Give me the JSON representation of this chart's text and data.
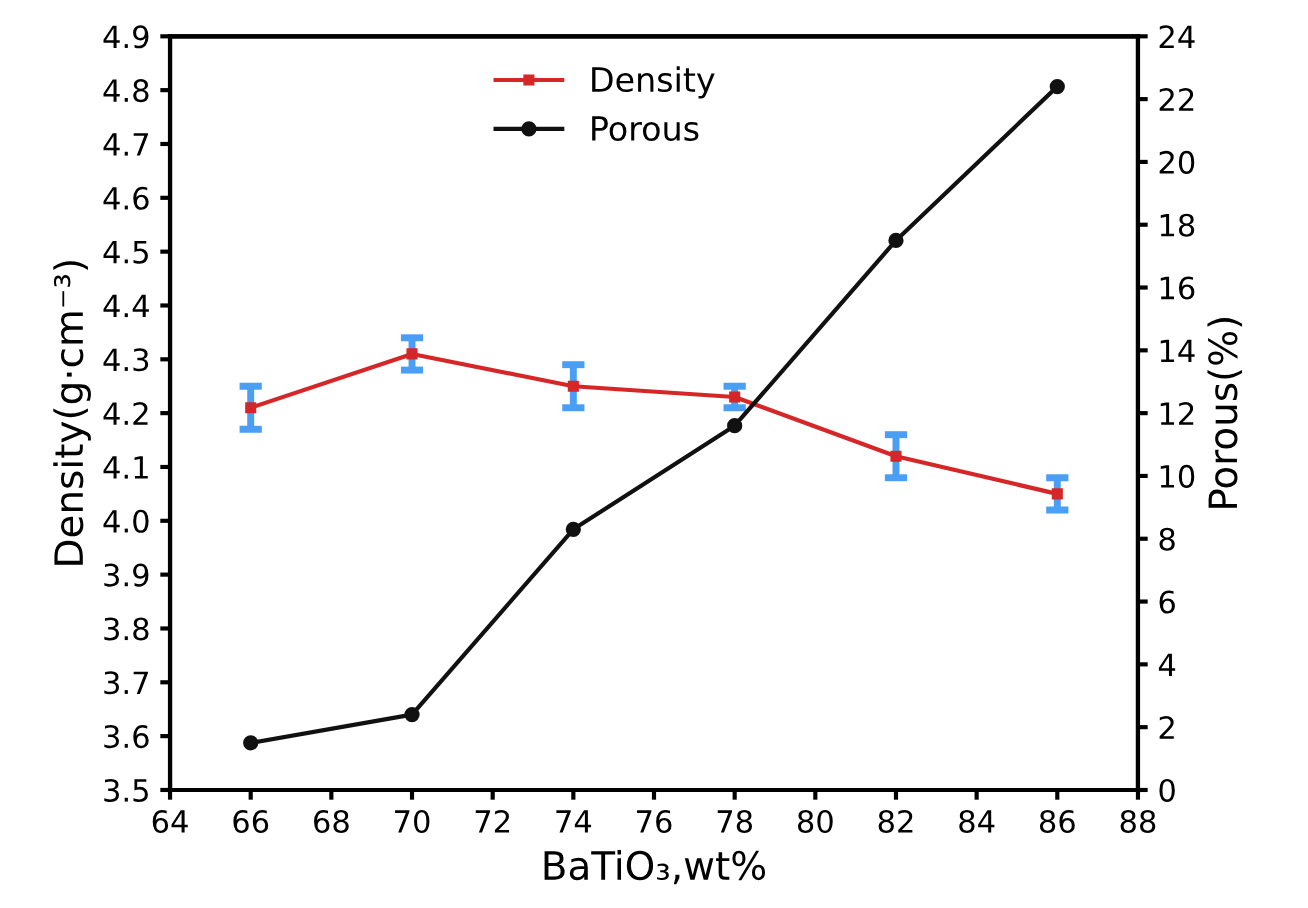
{
  "chart_data": {
    "type": "line",
    "xlabel": "BaTiO₃,wt%",
    "ylabel": "Density(g·cm⁻³)",
    "y2label": "Porous(%)",
    "x": [
      66,
      70,
      74,
      78,
      82,
      86
    ],
    "series": [
      {
        "name": "Density",
        "color": "#d62728",
        "values": [
          4.21,
          4.31,
          4.25,
          4.23,
          4.12,
          4.05
        ],
        "errors": [
          0.04,
          0.03,
          0.04,
          0.02,
          0.04,
          0.03
        ],
        "marker": "square"
      },
      {
        "name": "Porous",
        "color": "#111111",
        "values": [
          1.5,
          2.4,
          8.3,
          11.6,
          17.5,
          22.4
        ],
        "axis": "y2",
        "marker": "circle"
      }
    ],
    "xlim": [
      64,
      88
    ],
    "xticks": [
      64,
      66,
      68,
      70,
      72,
      74,
      76,
      78,
      80,
      82,
      84,
      86,
      88
    ],
    "ylim": [
      3.5,
      4.9
    ],
    "yticks": [
      3.5,
      3.6,
      3.7,
      3.8,
      3.9,
      {
        "value": 4.0,
        "label": "4.0"
      },
      4.1,
      4.2,
      4.3,
      4.4,
      4.5,
      4.6,
      4.7,
      4.8,
      4.9
    ],
    "y2lim": [
      0,
      24
    ],
    "y2ticks": [
      0,
      2,
      4,
      6,
      8,
      10,
      12,
      14,
      16,
      18,
      20,
      22,
      24
    ],
    "legend": "top",
    "grid": false,
    "line_style": "solid"
  }
}
